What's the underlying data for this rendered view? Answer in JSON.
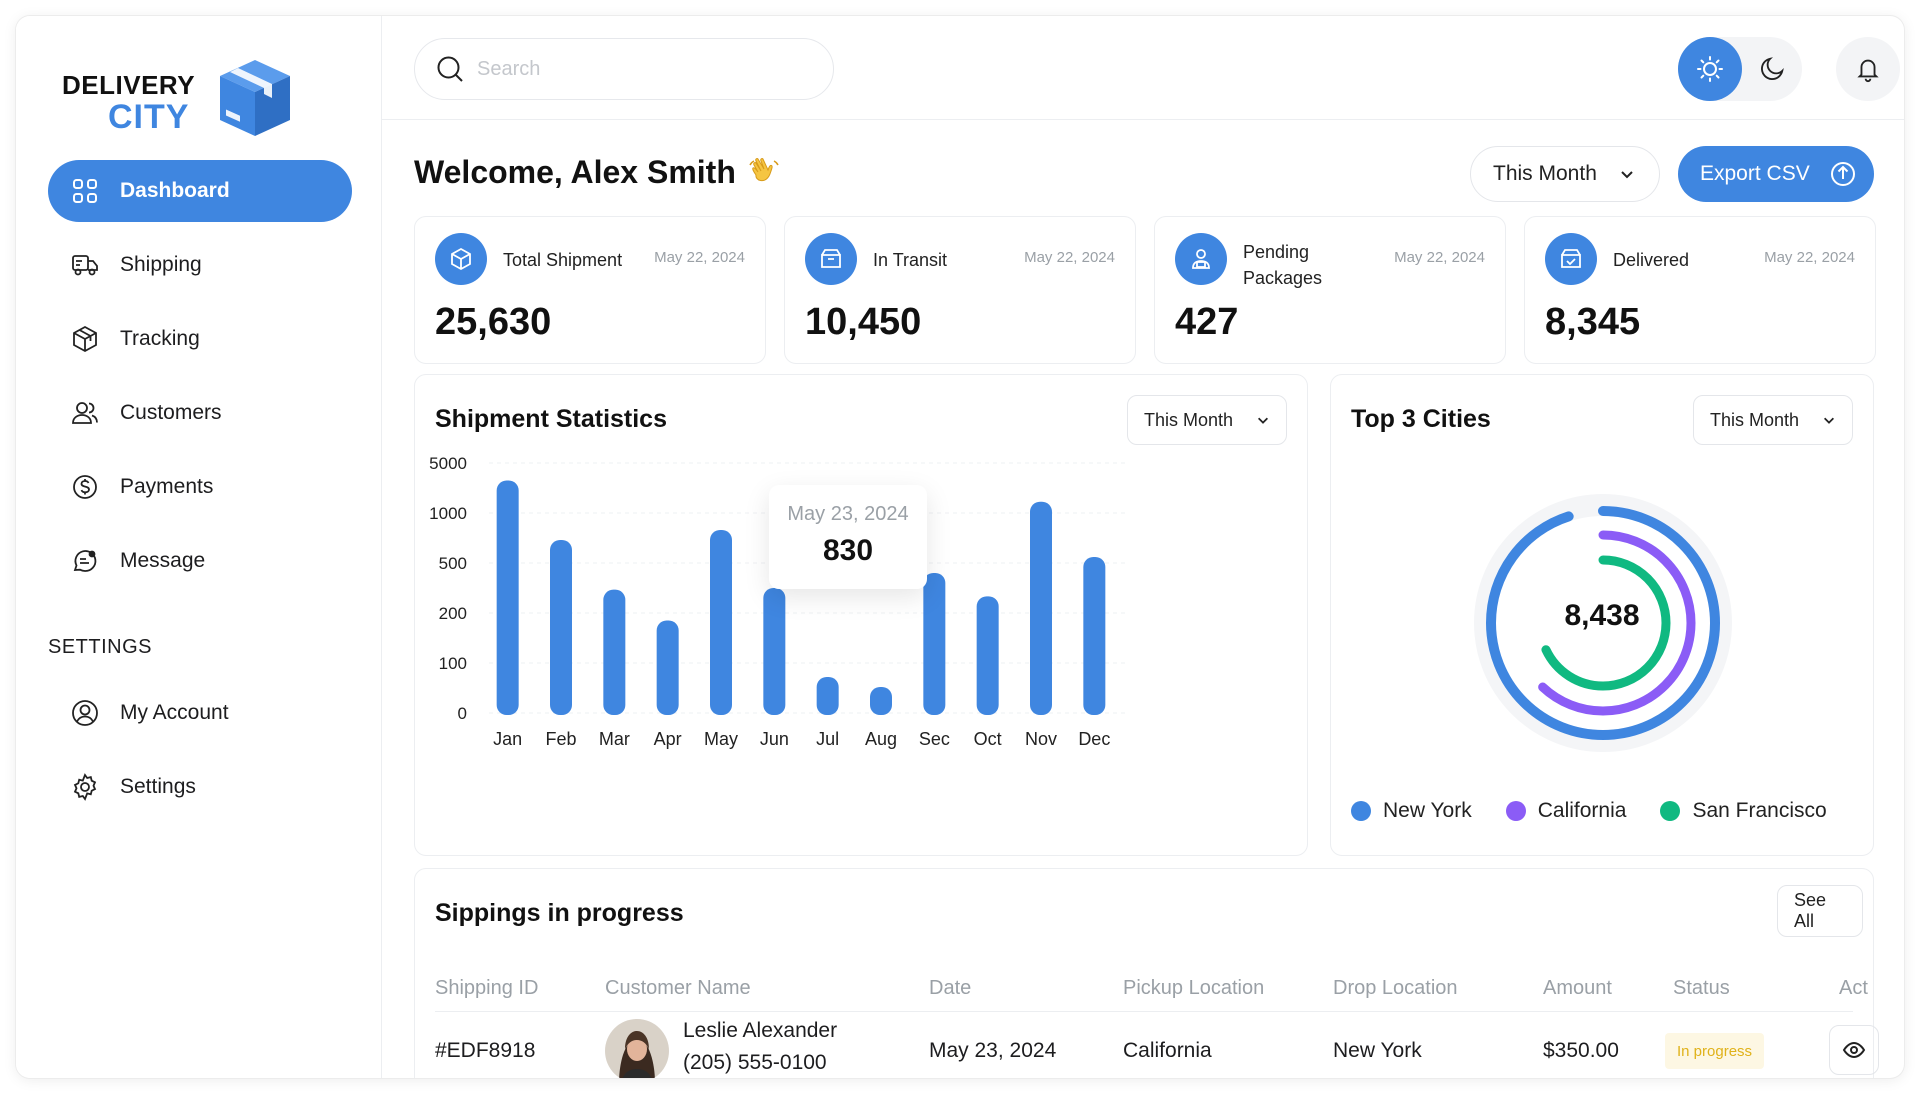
{
  "brand": {
    "line1": "DELIVERY",
    "line2": "CITY"
  },
  "sidebar": {
    "items": [
      {
        "label": "Dashboard",
        "icon": "grid-icon",
        "active": true
      },
      {
        "label": "Shipping",
        "icon": "truck-icon"
      },
      {
        "label": "Tracking",
        "icon": "package-icon"
      },
      {
        "label": "Customers",
        "icon": "users-icon"
      },
      {
        "label": "Payments",
        "icon": "dollar-circle-icon"
      },
      {
        "label": "Message",
        "icon": "message-icon"
      }
    ],
    "settings_heading": "SETTINGS",
    "settings_items": [
      {
        "label": "My Account",
        "icon": "user-circle-icon"
      },
      {
        "label": "Settings",
        "icon": "gear-icon"
      }
    ]
  },
  "header": {
    "search_placeholder": "Search"
  },
  "welcome": {
    "text": "Welcome, Alex Smith"
  },
  "filters": {
    "period": "This Month"
  },
  "export": {
    "label": "Export CSV"
  },
  "stats": [
    {
      "label": "Total Shipment",
      "date": "May 22, 2024",
      "value": "25,630"
    },
    {
      "label": "In Transit",
      "date": "May 22, 2024",
      "value": "10,450"
    },
    {
      "label": "Pending Packages",
      "date": "May 22, 2024",
      "value": "427"
    },
    {
      "label": "Delivered",
      "date": "May 22, 2024",
      "value": "8,345"
    }
  ],
  "shipment_statistics": {
    "title": "Shipment Statistics",
    "period": "This Month",
    "tooltip": {
      "date": "May 23, 2024",
      "value": "830"
    }
  },
  "top_cities": {
    "title": "Top 3 Cities",
    "period": "This Month",
    "total": "8,438",
    "legend": [
      {
        "name": "New York",
        "color": "#3f86e0"
      },
      {
        "name": "California",
        "color": "#8b5cf6"
      },
      {
        "name": "San Francisco",
        "color": "#10b981"
      }
    ]
  },
  "chart_data": [
    {
      "type": "bar",
      "title": "Shipment Statistics",
      "categories": [
        "Jan",
        "Feb",
        "Mar",
        "Apr",
        "May",
        "Jun",
        "Jul",
        "Aug",
        "Sec",
        "Oct",
        "Nov",
        "Dec"
      ],
      "yticks": [
        "5000",
        "1000",
        "500",
        "200",
        "100",
        "0"
      ],
      "values": [
        3600,
        730,
        340,
        185,
        830,
        350,
        72,
        52,
        440,
        300,
        1900,
        560
      ],
      "color": "#3f86e0",
      "grid": true,
      "highlight": {
        "category": "May",
        "date": "May 23, 2024",
        "value": 830
      }
    },
    {
      "type": "pie",
      "title": "Top 3 Cities",
      "variant": "concentric-rings",
      "center_value": "8,438",
      "series": [
        {
          "name": "New York",
          "fraction": 0.95,
          "color": "#3f86e0"
        },
        {
          "name": "California",
          "fraction": 0.62,
          "color": "#8b5cf6"
        },
        {
          "name": "San Francisco",
          "fraction": 0.68,
          "color": "#10b981"
        }
      ]
    }
  ],
  "shippings": {
    "title": "Sippings in progress",
    "see_all": "See All",
    "columns": [
      "Shipping ID",
      "Customer Name",
      "Date",
      "Pickup Location",
      "Drop Location",
      "Amount",
      "Status",
      "Act"
    ],
    "rows": [
      {
        "id": "#EDF8918",
        "name": "Leslie Alexander",
        "phone": "(205) 555-0100",
        "date": "May 23, 2024",
        "pickup": "California",
        "drop": "New York",
        "amount": "$350.00",
        "status": "In progress"
      }
    ]
  }
}
